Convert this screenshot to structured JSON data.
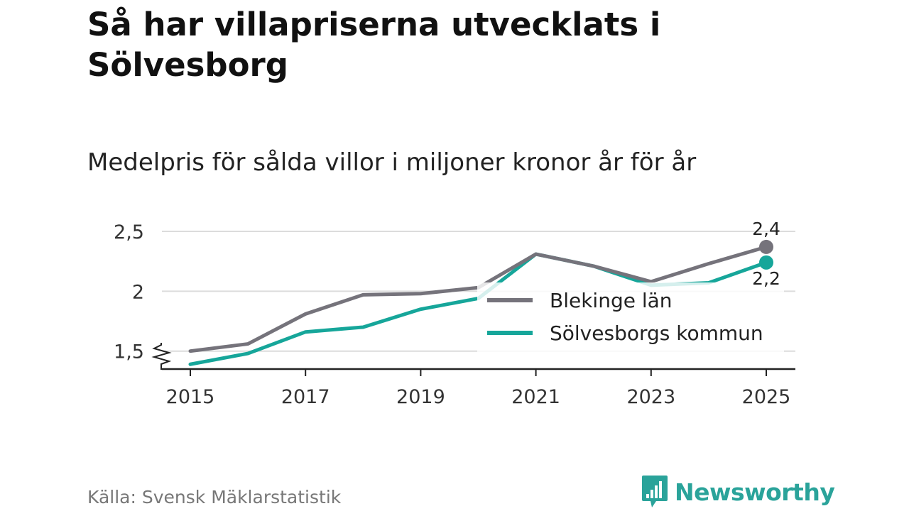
{
  "title": "Så har villapriserna utvecklats i Sölvesborg",
  "subtitle": "Medelpris för sålda villor i miljoner kronor år för år",
  "source": "Källa: Svensk Mäklarstatistik",
  "brand": {
    "name": "Newsworthy",
    "icon": "newsworthy-logo-icon",
    "color": "#2aa39a"
  },
  "chart_data": {
    "type": "line",
    "title": "Så har villapriserna utvecklats i Sölvesborg",
    "subtitle": "Medelpris för sålda villor i miljoner kronor år för år",
    "xlabel": "",
    "ylabel": "",
    "x": [
      2015,
      2016,
      2017,
      2018,
      2019,
      2020,
      2021,
      2022,
      2023,
      2024,
      2025
    ],
    "x_tick_values": [
      2015,
      2017,
      2019,
      2021,
      2023,
      2025
    ],
    "x_tick_labels": [
      "2015",
      "2017",
      "2019",
      "2021",
      "2023",
      "2025"
    ],
    "y_tick_values": [
      1.5,
      2,
      2.5
    ],
    "y_tick_labels": [
      "1,5",
      "2",
      "2,5"
    ],
    "xlim": [
      2014.75,
      2025.25
    ],
    "ylim": [
      1.35,
      2.5
    ],
    "y_axis_break": true,
    "grid": true,
    "legend_position": "center-right",
    "series": [
      {
        "name": "Blekinge län",
        "color": "#75737b",
        "values": [
          1.5,
          1.56,
          1.81,
          1.97,
          1.98,
          2.03,
          2.31,
          2.21,
          2.08,
          2.23,
          2.37
        ],
        "end_label": "2,4"
      },
      {
        "name": "Sölvesborgs kommun",
        "color": "#16a69a",
        "values": [
          1.39,
          1.48,
          1.66,
          1.7,
          1.85,
          1.94,
          2.31,
          2.21,
          2.05,
          2.07,
          2.24
        ],
        "end_label": "2,2"
      }
    ]
  }
}
